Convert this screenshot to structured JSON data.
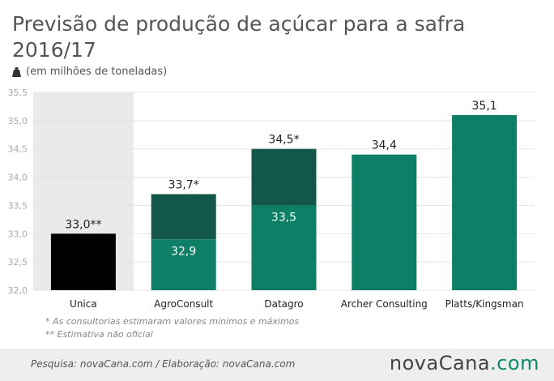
{
  "header": {
    "title": "Previsão de produção de açúcar para a safra 2016/17",
    "unit_label": "(em milhões de toneladas)",
    "unit_icon": "weight-icon"
  },
  "notes": {
    "note1": "* As consultorias estimaram valores mínimos e máximos",
    "note2": "** Estimativa não oficial"
  },
  "footer": {
    "source": "Pesquisa: novaCana.com / Elaboração: novaCana.com",
    "logo_main": "novaCana",
    "logo_dot": ".",
    "logo_tld": "com"
  },
  "chart_data": {
    "type": "bar",
    "stacked_range": true,
    "categories": [
      "Unica",
      "AgroConsult",
      "Datagro",
      "Archer Consulting",
      "Platts/Kingsman"
    ],
    "series": [
      {
        "values": [
          null,
          32.9,
          33.5,
          34.4,
          35.1
        ],
        "labels": [
          "",
          "32,9",
          "33,5",
          "",
          ""
        ]
      },
      {
        "values": [
          null,
          33.7,
          34.5,
          null,
          null
        ],
        "labels": [
          "",
          "33,7*",
          "34,5*",
          "",
          ""
        ]
      }
    ],
    "unica_value": 33.0,
    "unica_label": "33,0**",
    "top_labels": [
      "33,0**",
      "33,7*",
      "34,5*",
      "34,4",
      "35,1"
    ],
    "ylim": [
      32.0,
      35.5
    ],
    "yticks": [
      32.0,
      32.5,
      33.0,
      33.5,
      34.0,
      34.5,
      35.0,
      35.5
    ],
    "ytick_labels": [
      "32,0",
      "32,5",
      "33,0",
      "33,5",
      "34,0",
      "34,5",
      "35,0",
      "35,5"
    ],
    "grid": true,
    "highlight_category": "Unica",
    "colors": {
      "unica": "#000000",
      "min": "#0d7f66",
      "max": "#13564a",
      "highlight_bg": "#eaeaea",
      "grid": "#e4e4e4",
      "axis_text": "#aaaaaa"
    }
  }
}
